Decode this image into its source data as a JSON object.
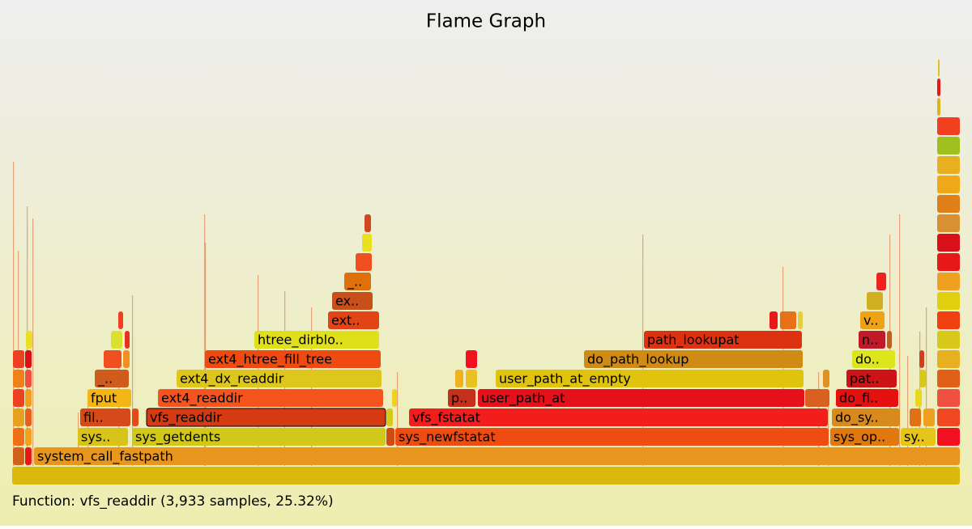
{
  "title": "Flame Graph",
  "frames": [
    {
      "label": "system_call_fastpath"
    },
    {
      "label": "sys.."
    },
    {
      "label": "sys_getdents"
    },
    {
      "label": "sys_newfstatat"
    },
    {
      "label": "sys_op.."
    },
    {
      "label": "sy.."
    },
    {
      "label": "fil.."
    },
    {
      "label": "vfs_readdir"
    },
    {
      "label": "vfs_fstatat"
    },
    {
      "label": "do_sy.."
    },
    {
      "label": "fput"
    },
    {
      "label": "ext4_readdir"
    },
    {
      "label": "p.."
    },
    {
      "label": "user_path_at"
    },
    {
      "label": "do_fi.."
    },
    {
      "label": "_.."
    },
    {
      "label": "ext4_dx_readdir"
    },
    {
      "label": "user_path_at_empty"
    },
    {
      "label": "pat.."
    },
    {
      "label": "ext4_htree_fill_tree"
    },
    {
      "label": "do_path_lookup"
    },
    {
      "label": "do.."
    },
    {
      "label": "htree_dirblo.."
    },
    {
      "label": "path_lookupat"
    },
    {
      "label": "n.."
    },
    {
      "label": "ext.."
    },
    {
      "label": "v.."
    },
    {
      "label": "ex.."
    },
    {
      "label": "_.."
    }
  ],
  "status": "Function: vfs_readdir (3,933 samples, 25.32%)"
}
